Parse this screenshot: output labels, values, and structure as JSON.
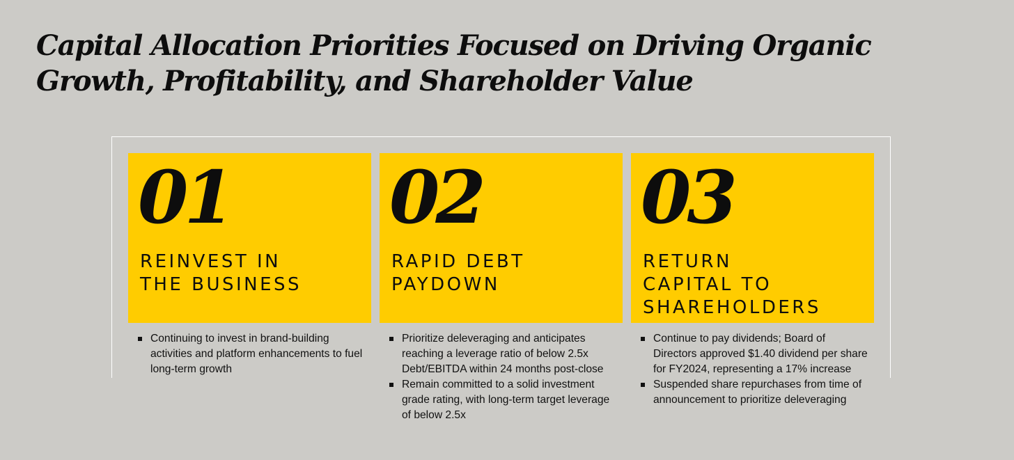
{
  "title": {
    "line1": "Capital Allocation Priorities Focused on Driving Organic",
    "line2": "Growth, Profitability, and Shareholder Value"
  },
  "priorities": [
    {
      "number": "01",
      "heading_lines": [
        "REINVEST IN",
        "THE BUSINESS"
      ],
      "bullets": [
        "Continuing to invest in brand-building activities and platform enhancements to fuel long-term growth"
      ]
    },
    {
      "number": "02",
      "heading_lines": [
        "RAPID DEBT",
        "PAYDOWN"
      ],
      "bullets": [
        "Prioritize deleveraging and anticipates reaching a leverage ratio of below 2.5x Debt/EBITDA within 24 months post-close",
        "Remain committed to a solid investment grade rating, with long-term target leverage of below 2.5x"
      ]
    },
    {
      "number": "03",
      "heading_lines": [
        "RETURN",
        "CAPITAL TO",
        "SHAREHOLDERS"
      ],
      "bullets": [
        "Continue to pay dividends; Board of Directors approved $1.40 dividend per share for FY2024, representing a 17% increase",
        "Suspended share repurchases from time of announcement to prioritize deleveraging"
      ]
    }
  ],
  "colors": {
    "background": "#cccbc7",
    "card": "#ffcc00",
    "text": "#0d0d0d",
    "frame": "#ffffff"
  }
}
